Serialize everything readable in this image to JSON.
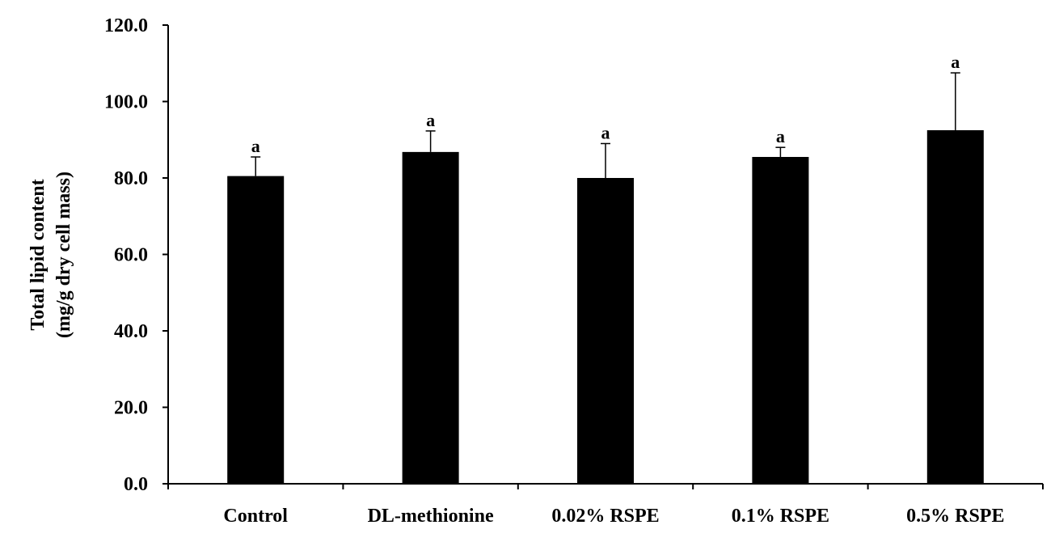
{
  "chart_data": {
    "type": "bar",
    "categories": [
      "Control",
      "DL-methionine",
      "0.02% RSPE",
      "0.1% RSPE",
      "0.5% RSPE"
    ],
    "values": [
      80.5,
      86.8,
      80.0,
      85.5,
      92.5
    ],
    "error_bars_upper": [
      5.0,
      5.5,
      9.0,
      2.5,
      15.0
    ],
    "significance_labels": [
      "a",
      "a",
      "a",
      "a",
      "a"
    ],
    "ylabel_line1": "Total lipid content",
    "ylabel_line2": "(mg/g dry cell mass)",
    "xlabel": "",
    "title": "",
    "ylim": [
      0,
      120
    ],
    "yticks": [
      "0.0",
      "20.0",
      "40.0",
      "60.0",
      "80.0",
      "100.0",
      "120.0"
    ],
    "ytick_values": [
      0,
      20,
      40,
      60,
      80,
      100,
      120
    ],
    "bar_color": "#000000",
    "grid": false,
    "legend": "none"
  }
}
